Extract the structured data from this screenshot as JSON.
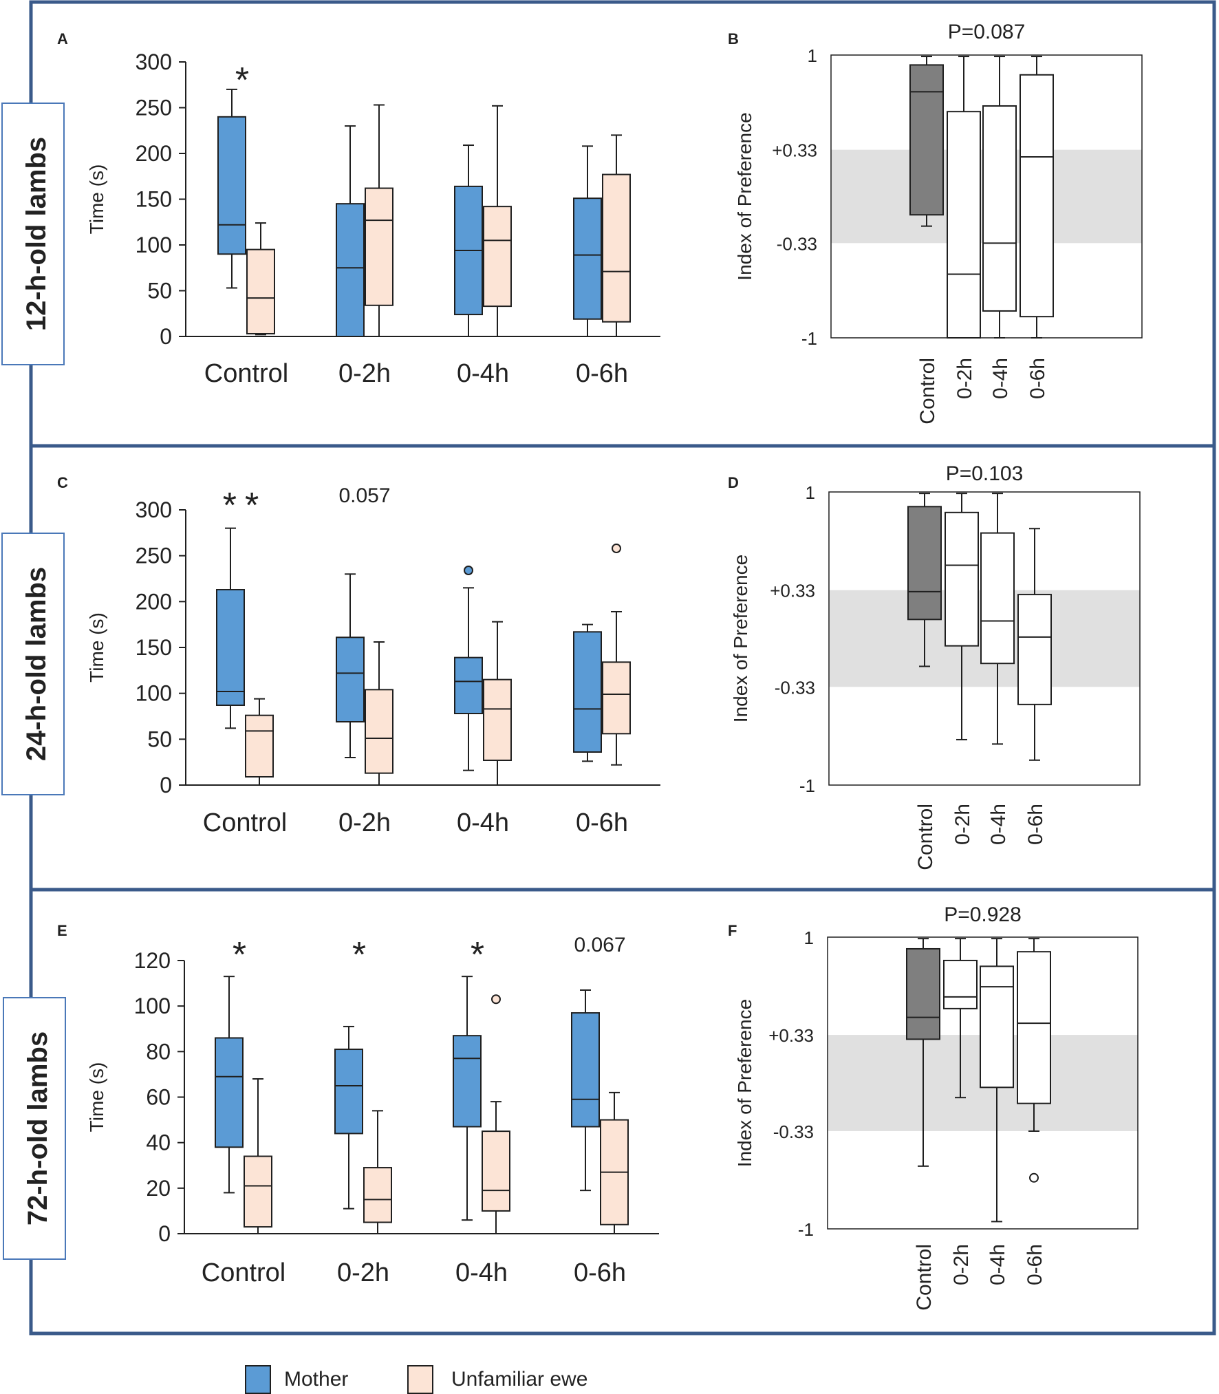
{
  "colors": {
    "frame": "#3a5a8a",
    "mother": "#5b9bd5",
    "ewe": "#fce4d6",
    "control_index": "#7f7f7f",
    "index_box": "#ffffff",
    "band": "#e0e0e0",
    "outline": "#1f1f1f"
  },
  "legend": {
    "mother": "Mother",
    "ewe": "Unfamiliar ewe"
  },
  "rows": [
    {
      "label": "12-h-old lambs"
    },
    {
      "label": "24-h-old lambs"
    },
    {
      "label": "72-h-old lambs"
    }
  ],
  "chart_data": [
    {
      "panel": "A",
      "type": "box",
      "ylabel": "Time (s)",
      "ylim": [
        0,
        300
      ],
      "yticks": [
        0,
        50,
        100,
        150,
        200,
        250,
        300
      ],
      "categories": [
        "Control",
        "0-2h",
        "0-4h",
        "0-6h"
      ],
      "annotations": [
        "*",
        "",
        "",
        ""
      ],
      "series": [
        {
          "name": "Mother",
          "boxes": [
            {
              "min": 53,
              "q1": 90,
              "median": 122,
              "q3": 240,
              "max": 270,
              "outliers": []
            },
            {
              "min": 0,
              "q1": 0,
              "median": 75,
              "q3": 145,
              "max": 230,
              "outliers": []
            },
            {
              "min": 0,
              "q1": 24,
              "median": 94,
              "q3": 164,
              "max": 209,
              "outliers": []
            },
            {
              "min": 0,
              "q1": 19,
              "median": 89,
              "q3": 151,
              "max": 208,
              "outliers": []
            }
          ]
        },
        {
          "name": "Unfamiliar ewe",
          "boxes": [
            {
              "min": 2,
              "q1": 3,
              "median": 42,
              "q3": 95,
              "max": 124,
              "outliers": []
            },
            {
              "min": 0,
              "q1": 34,
              "median": 127,
              "q3": 162,
              "max": 253,
              "outliers": []
            },
            {
              "min": 0,
              "q1": 33,
              "median": 105,
              "q3": 142,
              "max": 252,
              "outliers": []
            },
            {
              "min": 0,
              "q1": 16,
              "median": 71,
              "q3": 177,
              "max": 220,
              "outliers": []
            }
          ]
        }
      ]
    },
    {
      "panel": "B",
      "type": "box",
      "ylabel": "Index of Preference",
      "title": "P=0.087",
      "ylim": [
        -1,
        1
      ],
      "yticks": [
        -1,
        -0.33,
        0.33,
        1
      ],
      "ytick_labels": [
        "-1",
        "-0.33",
        "+0.33",
        "1"
      ],
      "band": [
        -0.33,
        0.33
      ],
      "categories": [
        "Control",
        "0-2h",
        "0-4h",
        "0-6h"
      ],
      "boxes": [
        {
          "min": -0.21,
          "q1": -0.13,
          "median": 0.74,
          "q3": 0.93,
          "max": 0.99,
          "outliers": []
        },
        {
          "min": -1.0,
          "q1": -1.0,
          "median": -0.55,
          "q3": 0.6,
          "max": 0.99,
          "outliers": []
        },
        {
          "min": -1.0,
          "q1": -0.81,
          "median": -0.33,
          "q3": 0.64,
          "max": 0.99,
          "outliers": []
        },
        {
          "min": -1.0,
          "q1": -0.85,
          "median": 0.28,
          "q3": 0.86,
          "max": 0.99,
          "outliers": []
        }
      ]
    },
    {
      "panel": "C",
      "type": "box",
      "ylabel": "Time (s)",
      "ylim": [
        0,
        300
      ],
      "yticks": [
        0,
        50,
        100,
        150,
        200,
        250,
        300
      ],
      "categories": [
        "Control",
        "0-2h",
        "0-4h",
        "0-6h"
      ],
      "annotations": [
        "**",
        "0.057",
        "",
        ""
      ],
      "series": [
        {
          "name": "Mother",
          "boxes": [
            {
              "min": 62,
              "q1": 87,
              "median": 102,
              "q3": 213,
              "max": 280,
              "outliers": []
            },
            {
              "min": 30,
              "q1": 69,
              "median": 122,
              "q3": 161,
              "max": 230,
              "outliers": []
            },
            {
              "min": 16,
              "q1": 78,
              "median": 113,
              "q3": 139,
              "max": 215,
              "outliers": [
                234
              ]
            },
            {
              "min": 26,
              "q1": 36,
              "median": 83,
              "q3": 167,
              "max": 175,
              "outliers": []
            }
          ]
        },
        {
          "name": "Unfamiliar ewe",
          "boxes": [
            {
              "min": 0,
              "q1": 9,
              "median": 59,
              "q3": 76,
              "max": 94,
              "outliers": []
            },
            {
              "min": 0,
              "q1": 13,
              "median": 51,
              "q3": 104,
              "max": 156,
              "outliers": []
            },
            {
              "min": 0,
              "q1": 27,
              "median": 83,
              "q3": 115,
              "max": 178,
              "outliers": []
            },
            {
              "min": 22,
              "q1": 56,
              "median": 99,
              "q3": 134,
              "max": 189,
              "outliers": [
                258
              ]
            }
          ]
        }
      ]
    },
    {
      "panel": "D",
      "type": "box",
      "ylabel": "Index of Preference",
      "title": "P=0.103",
      "ylim": [
        -1,
        1
      ],
      "yticks": [
        -1,
        -0.33,
        0.33,
        1
      ],
      "ytick_labels": [
        "-1",
        "-0.33",
        "+0.33",
        "1"
      ],
      "band": [
        -0.33,
        0.33
      ],
      "categories": [
        "Control",
        "0-2h",
        "0-4h",
        "0-6h"
      ],
      "boxes": [
        {
          "min": -0.19,
          "q1": 0.13,
          "median": 0.32,
          "q3": 0.9,
          "max": 0.99,
          "outliers": []
        },
        {
          "min": -0.69,
          "q1": -0.05,
          "median": 0.5,
          "q3": 0.86,
          "max": 0.99,
          "outliers": []
        },
        {
          "min": -0.72,
          "q1": -0.17,
          "median": 0.12,
          "q3": 0.72,
          "max": 0.99,
          "outliers": []
        },
        {
          "min": -0.83,
          "q1": -0.45,
          "median": 0.01,
          "q3": 0.3,
          "max": 0.75,
          "outliers": []
        }
      ]
    },
    {
      "panel": "E",
      "type": "box",
      "ylabel": "Time (s)",
      "ylim": [
        0,
        120
      ],
      "yticks": [
        0,
        20,
        40,
        60,
        80,
        100,
        120
      ],
      "categories": [
        "Control",
        "0-2h",
        "0-4h",
        "0-6h"
      ],
      "annotations": [
        "*",
        "*",
        "*",
        "0.067"
      ],
      "series": [
        {
          "name": "Mother",
          "boxes": [
            {
              "min": 18,
              "q1": 38,
              "median": 69,
              "q3": 86,
              "max": 113,
              "outliers": []
            },
            {
              "min": 11,
              "q1": 44,
              "median": 65,
              "q3": 81,
              "max": 91,
              "outliers": []
            },
            {
              "min": 6,
              "q1": 47,
              "median": 77,
              "q3": 87,
              "max": 113,
              "outliers": []
            },
            {
              "min": 19,
              "q1": 47,
              "median": 59,
              "q3": 97,
              "max": 107,
              "outliers": []
            }
          ]
        },
        {
          "name": "Unfamiliar ewe",
          "boxes": [
            {
              "min": 0,
              "q1": 3,
              "median": 21,
              "q3": 34,
              "max": 68,
              "outliers": []
            },
            {
              "min": 0,
              "q1": 5,
              "median": 15,
              "q3": 29,
              "max": 54,
              "outliers": []
            },
            {
              "min": 0,
              "q1": 10,
              "median": 19,
              "q3": 45,
              "max": 58,
              "outliers": [
                103
              ]
            },
            {
              "min": 0,
              "q1": 4,
              "median": 27,
              "q3": 50,
              "max": 62,
              "outliers": []
            }
          ]
        }
      ]
    },
    {
      "panel": "F",
      "type": "box",
      "ylabel": "Index of Preference",
      "title": "P=0.928",
      "ylim": [
        -1,
        1
      ],
      "yticks": [
        -1,
        -0.33,
        0.33,
        1
      ],
      "ytick_labels": [
        "-1",
        "-0.33",
        "+0.33",
        "1"
      ],
      "band": [
        -0.33,
        0.33
      ],
      "categories": [
        "Control",
        "0-2h",
        "0-4h",
        "0-6h"
      ],
      "boxes": [
        {
          "min": -0.57,
          "q1": 0.3,
          "median": 0.45,
          "q3": 0.92,
          "max": 0.99,
          "outliers": []
        },
        {
          "min": -0.1,
          "q1": 0.51,
          "median": 0.59,
          "q3": 0.84,
          "max": 0.99,
          "outliers": []
        },
        {
          "min": -0.95,
          "q1": -0.03,
          "median": 0.66,
          "q3": 0.8,
          "max": 0.99,
          "outliers": []
        },
        {
          "min": -0.33,
          "q1": -0.14,
          "median": 0.41,
          "q3": 0.9,
          "max": 0.99,
          "outliers": [
            -0.65
          ]
        }
      ]
    }
  ]
}
